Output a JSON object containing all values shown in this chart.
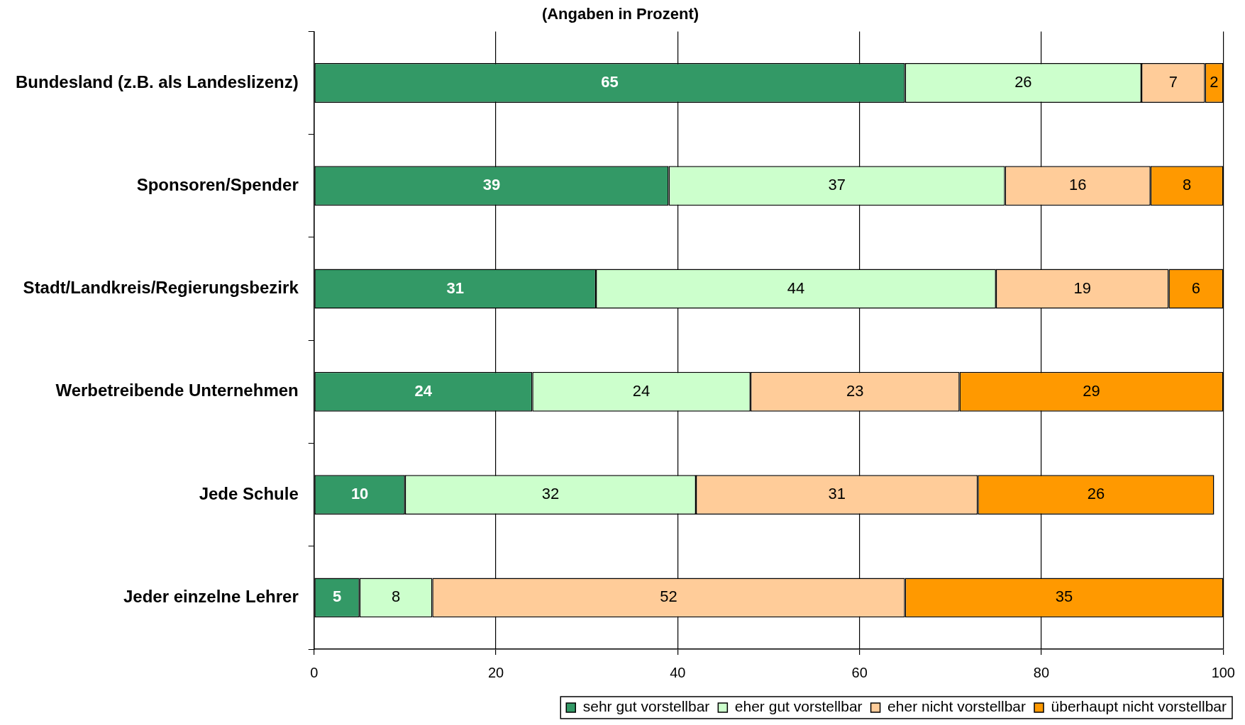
{
  "chart_data": {
    "type": "bar",
    "orientation": "horizontal",
    "stacked": true,
    "title": "(Angaben in Prozent)",
    "categories": [
      "Bundesland (z.B. als Landeslizenz)",
      "Sponsoren/Spender",
      "Stadt/Landkreis/Regierungsbezirk",
      "Werbetreibende Unternehmen",
      "Jede Schule",
      "Jeder einzelne Lehrer"
    ],
    "series": [
      {
        "name": "sehr gut vorstellbar",
        "color": "#339966",
        "values": [
          65,
          39,
          31,
          24,
          10,
          5
        ]
      },
      {
        "name": "eher gut vorstellbar",
        "color": "#ccffcc",
        "values": [
          26,
          37,
          44,
          24,
          32,
          8
        ]
      },
      {
        "name": "eher nicht vorstellbar",
        "color": "#ffcc99",
        "values": [
          7,
          16,
          19,
          23,
          31,
          52
        ]
      },
      {
        "name": "überhaupt nicht vorstellbar",
        "color": "#ff9900",
        "values": [
          2,
          8,
          6,
          29,
          26,
          35
        ]
      }
    ],
    "xlim": [
      0,
      100
    ],
    "xticks": [
      0,
      20,
      40,
      60,
      80,
      100
    ],
    "grid": "x",
    "legend": "bottom right",
    "data_labels": true
  }
}
